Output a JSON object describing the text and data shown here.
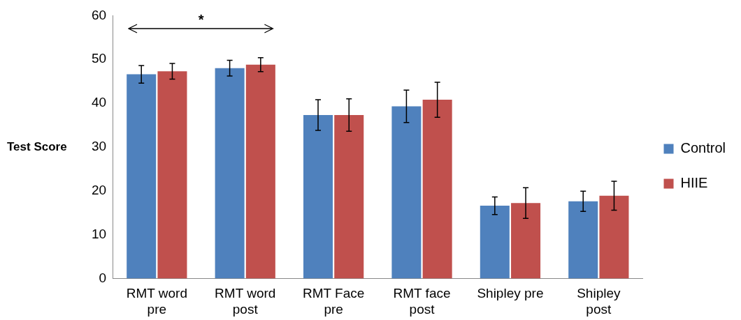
{
  "chart_data": {
    "type": "bar",
    "ylabel": "Test Score",
    "categories": [
      "RMT word pre",
      "RMT word post",
      "RMT Face pre",
      "RMT face post",
      "Shipley pre",
      "Shipley post"
    ],
    "series": [
      {
        "name": "Control",
        "color": "#4f81bd",
        "values": [
          46.6,
          48.0,
          37.3,
          39.3,
          16.6,
          17.6
        ],
        "errors": [
          2.0,
          1.8,
          3.5,
          3.7,
          2.0,
          2.3
        ]
      },
      {
        "name": "HIIE",
        "color": "#c0504d",
        "values": [
          47.3,
          48.8,
          37.3,
          40.8,
          17.2,
          18.9
        ],
        "errors": [
          1.8,
          1.6,
          3.7,
          4.0,
          3.5,
          3.3
        ]
      }
    ],
    "ylim": [
      0,
      60
    ],
    "yticks": [
      0,
      10,
      20,
      30,
      40,
      50,
      60
    ],
    "grid": false,
    "legend": "right",
    "annotations": [
      "*"
    ]
  }
}
